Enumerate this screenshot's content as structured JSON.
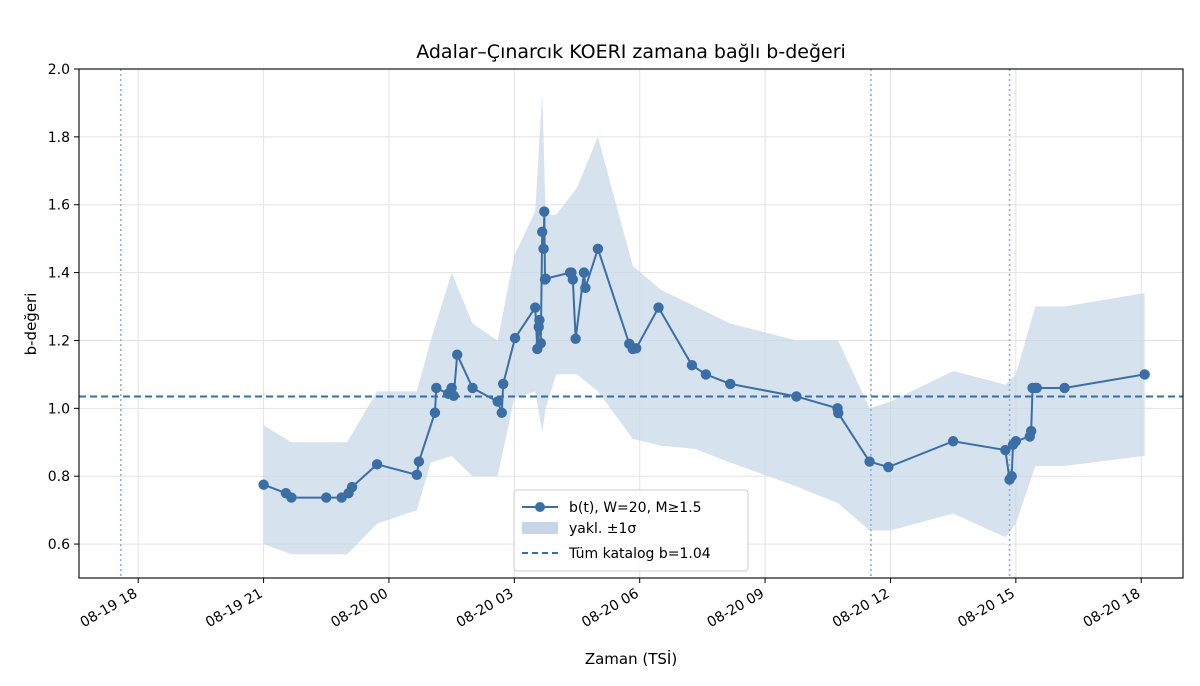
{
  "chart_data": {
    "type": "line",
    "title": "Adalar–Çınarcık KOERI zamana bağlı b-değeri",
    "xlabel": "Zaman (TSİ)",
    "ylabel": "b-değeri",
    "xlim": [
      "2025-08-19T16:35",
      "2025-08-20T19:00"
    ],
    "ylim": [
      0.5,
      2.0
    ],
    "x_ticks": [
      "2025-08-19T18:00",
      "2025-08-19T21:00",
      "2025-08-20T00:00",
      "2025-08-20T03:00",
      "2025-08-20T06:00",
      "2025-08-20T09:00",
      "2025-08-20T12:00",
      "2025-08-20T15:00",
      "2025-08-20T18:00"
    ],
    "x_tick_labels": [
      "08-19 18",
      "08-19 21",
      "08-20 00",
      "08-20 03",
      "08-20 06",
      "08-20 09",
      "08-20 12",
      "08-20 15",
      "08-20 18"
    ],
    "y_ticks": [
      0.6,
      0.8,
      1.0,
      1.2,
      1.4,
      1.6,
      1.8,
      2.0
    ],
    "y_tick_labels": [
      "0.6",
      "0.8",
      "1.0",
      "1.2",
      "1.4",
      "1.6",
      "1.8",
      "2.0"
    ],
    "grid": true,
    "legend_position": "bottom-center",
    "colors": {
      "line": "#3a6ea5",
      "band": "#c6d6e8",
      "ref": "#3a6ea5",
      "vlines": "#8fb0e8",
      "grid": "#e3e3e3"
    },
    "series": [
      {
        "name": "b(t), W=20, M≥1.5",
        "kind": "line-markers",
        "x": [
          "2025-08-19T21:00",
          "2025-08-19T21:32",
          "2025-08-19T21:40",
          "2025-08-19T22:30",
          "2025-08-19T22:52",
          "2025-08-19T23:02",
          "2025-08-19T23:07",
          "2025-08-19T23:43",
          "2025-08-20T00:40",
          "2025-08-20T00:43",
          "2025-08-20T01:06",
          "2025-08-20T01:08",
          "2025-08-20T01:25",
          "2025-08-20T01:30",
          "2025-08-20T01:33",
          "2025-08-20T01:38",
          "2025-08-20T02:00",
          "2025-08-20T02:36",
          "2025-08-20T02:42",
          "2025-08-20T02:44",
          "2025-08-20T03:01",
          "2025-08-20T03:30",
          "2025-08-20T03:33",
          "2025-08-20T03:35",
          "2025-08-20T03:36",
          "2025-08-20T03:38",
          "2025-08-20T03:40",
          "2025-08-20T03:42",
          "2025-08-20T03:43",
          "2025-08-20T03:44",
          "2025-08-20T03:45",
          "2025-08-20T04:20",
          "2025-08-20T04:22",
          "2025-08-20T04:24",
          "2025-08-20T04:28",
          "2025-08-20T04:40",
          "2025-08-20T04:42",
          "2025-08-20T05:00",
          "2025-08-20T05:45",
          "2025-08-20T05:50",
          "2025-08-20T05:55",
          "2025-08-20T06:27",
          "2025-08-20T07:15",
          "2025-08-20T07:35",
          "2025-08-20T08:10",
          "2025-08-20T09:45",
          "2025-08-20T10:44",
          "2025-08-20T10:45",
          "2025-08-20T11:30",
          "2025-08-20T11:57",
          "2025-08-20T13:30",
          "2025-08-20T14:45",
          "2025-08-20T14:51",
          "2025-08-20T14:54",
          "2025-08-20T14:56",
          "2025-08-20T15:00",
          "2025-08-20T15:20",
          "2025-08-20T15:22",
          "2025-08-20T15:24",
          "2025-08-20T15:28",
          "2025-08-20T15:30",
          "2025-08-20T16:10",
          "2025-08-20T18:05"
        ],
        "y": [
          0.775,
          0.75,
          0.737,
          0.737,
          0.737,
          0.75,
          0.768,
          0.835,
          0.804,
          0.843,
          0.987,
          1.06,
          1.043,
          1.06,
          1.037,
          1.158,
          1.06,
          1.02,
          0.987,
          1.072,
          1.207,
          1.297,
          1.175,
          1.24,
          1.26,
          1.192,
          1.52,
          1.47,
          1.58,
          1.38,
          1.382,
          1.4,
          1.4,
          1.38,
          1.205,
          1.4,
          1.355,
          1.47,
          1.19,
          1.175,
          1.177,
          1.297,
          1.127,
          1.1,
          1.072,
          1.035,
          1.0,
          0.986,
          0.843,
          0.827,
          0.903,
          0.877,
          0.79,
          0.8,
          0.893,
          0.903,
          0.917,
          0.933,
          1.06,
          1.06,
          1.06,
          1.06,
          1.1
        ]
      },
      {
        "name": "yakl. ±1σ",
        "kind": "band",
        "x": [
          "2025-08-19T21:00",
          "2025-08-19T21:40",
          "2025-08-19T23:00",
          "2025-08-19T23:43",
          "2025-08-20T00:40",
          "2025-08-20T01:00",
          "2025-08-20T01:30",
          "2025-08-20T02:00",
          "2025-08-20T02:36",
          "2025-08-20T03:00",
          "2025-08-20T03:30",
          "2025-08-20T03:40",
          "2025-08-20T03:45",
          "2025-08-20T04:00",
          "2025-08-20T04:30",
          "2025-08-20T05:00",
          "2025-08-20T05:50",
          "2025-08-20T06:30",
          "2025-08-20T07:20",
          "2025-08-20T08:10",
          "2025-08-20T09:45",
          "2025-08-20T10:45",
          "2025-08-20T11:30",
          "2025-08-20T12:00",
          "2025-08-20T13:30",
          "2025-08-20T14:45",
          "2025-08-20T15:00",
          "2025-08-20T15:28",
          "2025-08-20T16:10",
          "2025-08-20T18:05"
        ],
        "upper": [
          0.95,
          0.9,
          0.9,
          1.05,
          1.05,
          1.2,
          1.4,
          1.25,
          1.2,
          1.45,
          1.58,
          1.93,
          1.57,
          1.57,
          1.65,
          1.8,
          1.42,
          1.35,
          1.3,
          1.25,
          1.2,
          1.2,
          1.0,
          1.02,
          1.11,
          1.07,
          1.1,
          1.3,
          1.3,
          1.34
        ],
        "lower": [
          0.6,
          0.57,
          0.57,
          0.66,
          0.7,
          0.84,
          0.86,
          0.8,
          0.8,
          1.03,
          1.05,
          0.93,
          1.0,
          1.1,
          1.1,
          1.05,
          0.91,
          0.89,
          0.88,
          0.84,
          0.77,
          0.72,
          0.64,
          0.64,
          0.69,
          0.62,
          0.66,
          0.83,
          0.83,
          0.86
        ]
      },
      {
        "name": "Tüm katalog b=1.04",
        "kind": "hline",
        "y": 1.035
      }
    ],
    "vertical_markers": [
      "2025-08-19T17:35",
      "2025-08-20T11:32",
      "2025-08-20T14:51"
    ]
  }
}
